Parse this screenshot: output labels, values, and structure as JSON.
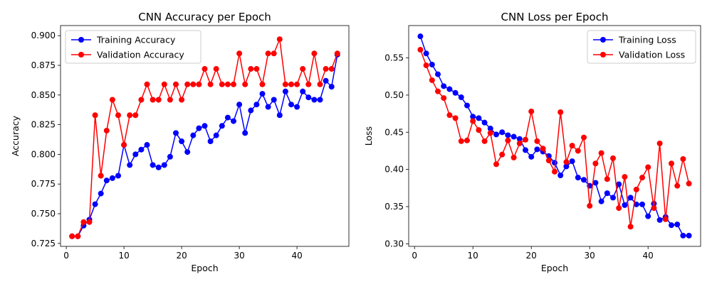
{
  "chart_data": [
    {
      "type": "line",
      "title": "CNN Accuracy per Epoch",
      "xlabel": "Epoch",
      "ylabel": "Accuracy",
      "xlim": [
        -1,
        49
      ],
      "ylim": [
        0.7225,
        0.9085
      ],
      "xticks": [
        0,
        10,
        20,
        30,
        40
      ],
      "yticks": [
        0.725,
        0.75,
        0.775,
        0.8,
        0.825,
        0.85,
        0.875,
        0.9
      ],
      "ytick_labels": [
        "0.725",
        "0.750",
        "0.775",
        "0.800",
        "0.825",
        "0.850",
        "0.875",
        "0.900"
      ],
      "grid": false,
      "legend_position": "top-left",
      "x": [
        1,
        2,
        3,
        4,
        5,
        6,
        7,
        8,
        9,
        10,
        11,
        12,
        13,
        14,
        15,
        16,
        17,
        18,
        19,
        20,
        21,
        22,
        23,
        24,
        25,
        26,
        27,
        28,
        29,
        30,
        31,
        32,
        33,
        34,
        35,
        36,
        37,
        38,
        39,
        40,
        41,
        42,
        43,
        44,
        45,
        46,
        47
      ],
      "series": [
        {
          "name": "Training Accuracy",
          "color": "#0000ff",
          "values": [
            0.731,
            0.731,
            0.74,
            0.745,
            0.758,
            0.767,
            0.778,
            0.78,
            0.782,
            0.808,
            0.791,
            0.8,
            0.804,
            0.808,
            0.791,
            0.789,
            0.791,
            0.798,
            0.818,
            0.811,
            0.802,
            0.816,
            0.822,
            0.824,
            0.811,
            0.816,
            0.824,
            0.831,
            0.828,
            0.842,
            0.818,
            0.837,
            0.842,
            0.851,
            0.84,
            0.846,
            0.833,
            0.853,
            0.842,
            0.84,
            0.853,
            0.848,
            0.846,
            0.846,
            0.862,
            0.857,
            0.884
          ]
        },
        {
          "name": "Validation Accuracy",
          "color": "#ff0000",
          "values": [
            0.731,
            0.731,
            0.743,
            0.743,
            0.833,
            0.782,
            0.82,
            0.846,
            0.833,
            0.808,
            0.833,
            0.833,
            0.846,
            0.859,
            0.846,
            0.846,
            0.859,
            0.846,
            0.859,
            0.846,
            0.859,
            0.859,
            0.859,
            0.872,
            0.859,
            0.872,
            0.859,
            0.859,
            0.859,
            0.885,
            0.859,
            0.872,
            0.872,
            0.859,
            0.885,
            0.885,
            0.897,
            0.859,
            0.859,
            0.859,
            0.872,
            0.859,
            0.885,
            0.859,
            0.872,
            0.872,
            0.885
          ]
        }
      ]
    },
    {
      "type": "line",
      "title": "CNN Loss per Epoch",
      "xlabel": "Epoch",
      "ylabel": "Loss",
      "xlim": [
        -1,
        49
      ],
      "ylim": [
        0.2965,
        0.5935
      ],
      "xticks": [
        0,
        10,
        20,
        30,
        40
      ],
      "yticks": [
        0.3,
        0.35,
        0.4,
        0.45,
        0.5,
        0.55
      ],
      "ytick_labels": [
        "0.30",
        "0.35",
        "0.40",
        "0.45",
        "0.50",
        "0.55"
      ],
      "grid": false,
      "legend_position": "top-right",
      "x": [
        1,
        2,
        3,
        4,
        5,
        6,
        7,
        8,
        9,
        10,
        11,
        12,
        13,
        14,
        15,
        16,
        17,
        18,
        19,
        20,
        21,
        22,
        23,
        24,
        25,
        26,
        27,
        28,
        29,
        30,
        31,
        32,
        33,
        34,
        35,
        36,
        37,
        38,
        39,
        40,
        41,
        42,
        43,
        44,
        45,
        46,
        47
      ],
      "series": [
        {
          "name": "Training Loss",
          "color": "#0000ff",
          "values": [
            0.579,
            0.556,
            0.541,
            0.528,
            0.512,
            0.508,
            0.503,
            0.497,
            0.486,
            0.471,
            0.469,
            0.463,
            0.455,
            0.447,
            0.45,
            0.446,
            0.444,
            0.441,
            0.426,
            0.417,
            0.427,
            0.424,
            0.418,
            0.409,
            0.392,
            0.404,
            0.411,
            0.389,
            0.386,
            0.378,
            0.382,
            0.357,
            0.368,
            0.362,
            0.38,
            0.352,
            0.362,
            0.353,
            0.353,
            0.337,
            0.354,
            0.332,
            0.336,
            0.325,
            0.326,
            0.311,
            0.311
          ]
        },
        {
          "name": "Validation Loss",
          "color": "#ff0000",
          "values": [
            0.561,
            0.54,
            0.52,
            0.505,
            0.496,
            0.473,
            0.469,
            0.438,
            0.439,
            0.465,
            0.453,
            0.438,
            0.449,
            0.407,
            0.42,
            0.439,
            0.416,
            0.435,
            0.44,
            0.478,
            0.438,
            0.428,
            0.412,
            0.397,
            0.477,
            0.41,
            0.432,
            0.425,
            0.443,
            0.351,
            0.408,
            0.422,
            0.387,
            0.415,
            0.348,
            0.39,
            0.323,
            0.373,
            0.389,
            0.403,
            0.348,
            0.435,
            0.333,
            0.408,
            0.378,
            0.414,
            0.381
          ]
        }
      ]
    }
  ]
}
